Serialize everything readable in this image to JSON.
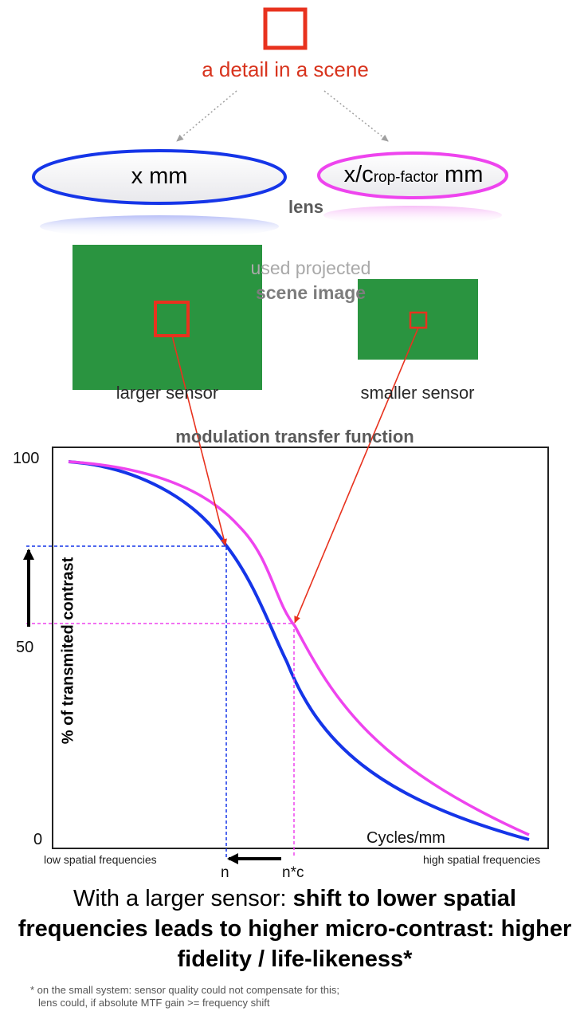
{
  "detail": {
    "label": "a detail in a scene"
  },
  "lenses": {
    "left_label": "x mm",
    "right_label_prefix": "x/c",
    "right_label_sub": "rop-factor",
    "right_label_suffix": " mm",
    "word": "lens"
  },
  "projection": {
    "line1": "used projected",
    "line2": "scene image"
  },
  "sensors": {
    "large_label": "larger sensor",
    "small_label": "smaller sensor"
  },
  "mtf": {
    "title": "modulation transfer function",
    "y_ticks": [
      "100",
      "50",
      "0"
    ],
    "y_label": "% of transmited contrast",
    "x_label": "Cycles/mm",
    "low_freq_label": "low spatial frequencies",
    "high_freq_label": "high spatial frequencies",
    "n_label": "n",
    "nc_label": "n*c"
  },
  "conclusion": {
    "plain": "With a larger sensor: ",
    "bold": "shift to lower spatial frequencies leads to higher micro-contrast: higher fidelity / life-likeness*"
  },
  "footnote": {
    "line1": "* on the small system: sensor quality could not compensate for this;",
    "line2": "lens could, if absolute MTF gain >= frequency shift"
  },
  "colors": {
    "detail_red": "#e8321e",
    "large_system_blue": "#1535e8",
    "small_system_magenta": "#ee44ee",
    "sensor_green": "#2a9440"
  }
}
